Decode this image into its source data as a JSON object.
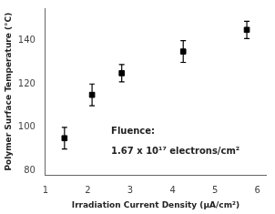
{
  "chart_data": {
    "type": "scatter",
    "x": [
      1.45,
      2.1,
      2.8,
      4.25,
      5.75
    ],
    "values": [
      95,
      115,
      125,
      135,
      145
    ],
    "yerr": [
      5,
      5,
      4,
      5,
      4
    ],
    "color": "black",
    "marker": "square",
    "xlabel": "Irradiation Current Density (μA/cm²)",
    "ylabel": "Polymer Surface Temperature (°C)",
    "xlim": [
      1.0,
      6.2
    ],
    "ylim": [
      78,
      155
    ],
    "xticks": [
      1,
      2,
      3,
      4,
      5,
      6
    ],
    "yticks": [
      80,
      100,
      120,
      140
    ],
    "grid": false,
    "annotations": [
      {
        "text": "Fluence:",
        "x": 2.55,
        "y": 98
      },
      {
        "text": "1.67 x 10¹⁷ electrons/cm²",
        "x": 2.55,
        "y": 89
      }
    ]
  }
}
